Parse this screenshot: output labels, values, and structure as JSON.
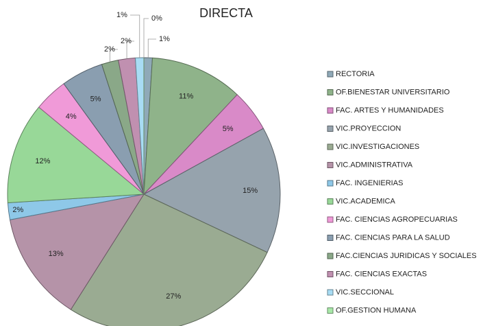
{
  "chart_data": {
    "type": "pie",
    "title": "DIRECTA",
    "categories": [
      "RECTORIA",
      "OF.BIENESTAR UNIVERSITARIO",
      "FAC. ARTES Y HUMANIDADES",
      "VIC.PROYECCION",
      "VIC.INVESTIGACIONES",
      "VIC.ADMINISTRATIVA",
      "FAC. INGENIERIAS",
      "VIC.ACADEMICA",
      "FAC. CIENCIAS AGROPECUARIAS",
      "FAC. CIENCIAS PARA LA SALUD",
      "FAC.CIENCIAS JURIDICAS Y SOCIALES",
      "FAC. CIENCIAS EXACTAS",
      "VIC.SECCIONAL",
      "OF.GESTION HUMANA"
    ],
    "values": [
      1,
      11,
      5,
      15,
      27,
      13,
      2,
      12,
      4,
      5,
      2,
      2,
      1,
      0
    ],
    "value_labels": [
      "1%",
      "11%",
      "5%",
      "15%",
      "27%",
      "13%",
      "2%",
      "12%",
      "4%",
      "5%",
      "2%",
      "2%",
      "1%",
      "0%"
    ],
    "colors": [
      "#8fa9b8",
      "#8fb38a",
      "#d98ac8",
      "#96a3ad",
      "#9aab92",
      "#b593a8",
      "#8ec8e8",
      "#98d898",
      "#f09ad8",
      "#8a9eb0",
      "#8aa888",
      "#c090b0",
      "#a8dcf4",
      "#a8e8a8"
    ],
    "legend": "right"
  }
}
